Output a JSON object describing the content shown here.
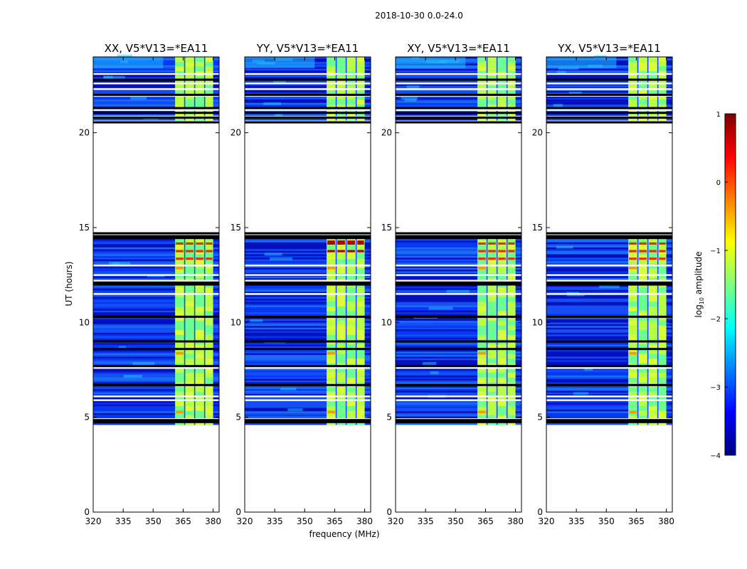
{
  "chart_data": {
    "type": "heatmap",
    "suptitle": "2018-10-30 0.0-24.0",
    "xlabel": "frequency (MHz)",
    "ylabel": "UT (hours)",
    "xlim": [
      320,
      383
    ],
    "ylim": [
      0,
      24
    ],
    "xticks": [
      320,
      335,
      350,
      365,
      380
    ],
    "yticks": [
      0,
      5,
      10,
      15,
      20
    ],
    "panels": [
      {
        "title": "XX, V5*V13=*EA11",
        "hot_rows": [
          13.3,
          13.7,
          14.1
        ]
      },
      {
        "title": "YY, V5*V13=*EA11",
        "hot_rows": [
          13.7,
          14.1,
          14.2
        ]
      },
      {
        "title": "XY, V5*V13=*EA11",
        "hot_rows": [
          13.3,
          13.7,
          14.1
        ]
      },
      {
        "title": "YX, V5*V13=*EA11",
        "hot_rows": [
          13.3,
          13.7,
          14.1
        ]
      }
    ],
    "data_time_ranges": [
      [
        4.6,
        14.4
      ],
      [
        20.5,
        24.0
      ]
    ],
    "rfi_band_mhz": [
      361,
      380
    ],
    "rfi_sub_channels_mhz": [
      [
        361,
        365.5
      ],
      [
        366,
        370.5
      ],
      [
        371,
        375.5
      ],
      [
        376,
        380
      ]
    ],
    "flagged_white_rows": [
      4.9,
      5.9,
      6.1,
      7.6,
      11.5,
      12.2,
      12.5,
      13.0,
      14.5,
      20.6,
      20.85,
      21.2,
      21.95,
      22.3,
      22.6,
      23.1
    ],
    "flagged_black_rows": [
      4.75,
      4.85,
      6.7,
      7.7,
      8.6,
      9.0,
      10.3,
      12.0,
      12.1,
      14.45,
      14.55,
      14.7,
      20.55,
      20.8,
      21.05,
      21.3,
      22.0,
      22.8
    ],
    "colorbar": {
      "label": "log10 amplitude",
      "label_base": "log",
      "label_sub": "10",
      "label_rest": " amplitude",
      "min": -4,
      "max": 1,
      "ticks": [
        -4,
        -3,
        -2,
        -1,
        0,
        1
      ],
      "tick_labels": [
        "−4",
        "−3",
        "−2",
        "−1",
        "0",
        "1"
      ],
      "colormap": "jet",
      "colormap_stops": [
        "#00007f",
        "#0000ff",
        "#007fff",
        "#00ffff",
        "#7fff7f",
        "#ffff00",
        "#ff7f00",
        "#ff0000",
        "#7f0000"
      ]
    }
  }
}
